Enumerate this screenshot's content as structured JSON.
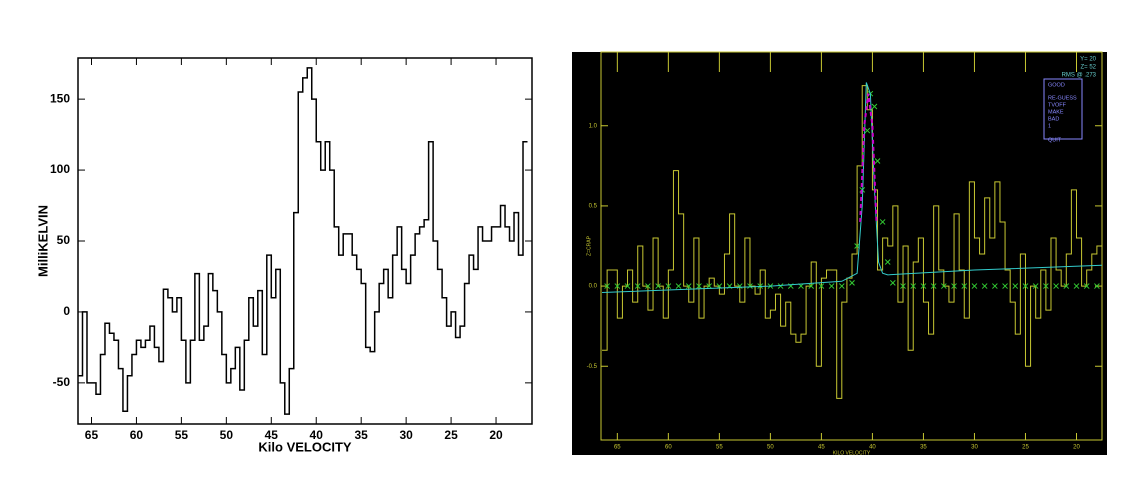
{
  "chart_data": [
    {
      "type": "step",
      "xlabel": "Kilo VELOCITY",
      "ylabel": "MilliKELVIN",
      "color": "#000000",
      "x": [
        66.25,
        65.75,
        65.25,
        64.75,
        64.25,
        63.75,
        63.25,
        62.75,
        62.25,
        61.75,
        61.25,
        60.75,
        60.25,
        59.75,
        59.25,
        58.75,
        58.25,
        57.75,
        57.25,
        56.75,
        56.25,
        55.75,
        55.25,
        54.75,
        54.25,
        53.75,
        53.25,
        52.75,
        52.25,
        51.75,
        51.25,
        50.75,
        50.25,
        49.75,
        49.25,
        48.75,
        48.25,
        47.75,
        47.25,
        46.75,
        46.25,
        45.75,
        45.25,
        44.75,
        44.25,
        43.75,
        43.25,
        42.75,
        42.25,
        41.75,
        41.25,
        40.75,
        40.25,
        39.75,
        39.25,
        38.75,
        38.25,
        37.75,
        37.25,
        36.75,
        36.25,
        35.75,
        35.25,
        34.75,
        34.25,
        33.75,
        33.25,
        32.75,
        32.25,
        31.75,
        31.25,
        30.75,
        30.25,
        29.75,
        29.25,
        28.75,
        28.25,
        27.75,
        27.25,
        26.75,
        26.25,
        25.75,
        25.25,
        24.75,
        24.25,
        23.75,
        23.25,
        22.75,
        22.25,
        21.75,
        21.25,
        20.75,
        20.25,
        19.75,
        19.25,
        18.75,
        18.25,
        17.75,
        17.25,
        16.75
      ],
      "values": [
        -45,
        0,
        -50,
        -50,
        -58,
        -30,
        -8,
        -15,
        -20,
        -40,
        -70,
        -45,
        -30,
        -20,
        -25,
        -20,
        -10,
        -25,
        -35,
        16,
        10,
        0,
        10,
        -20,
        -50,
        -20,
        27,
        -20,
        -10,
        27,
        15,
        0,
        -30,
        -50,
        -40,
        -25,
        -55,
        -20,
        10,
        -10,
        15,
        -30,
        40,
        10,
        30,
        -50,
        -72,
        -40,
        70,
        155,
        165,
        172,
        150,
        120,
        100,
        120,
        100,
        60,
        40,
        55,
        55,
        40,
        30,
        20,
        -25,
        -28,
        0,
        20,
        30,
        10,
        40,
        60,
        30,
        20,
        40,
        55,
        60,
        65,
        120,
        50,
        30,
        10,
        -10,
        0,
        -18,
        -10,
        20,
        40,
        30,
        60,
        50,
        50,
        60,
        60,
        75,
        60,
        50,
        70,
        40,
        120
      ],
      "xlim": [
        66.5,
        16
      ],
      "ylim": [
        -79,
        179
      ],
      "xticks": [
        65,
        60,
        55,
        50,
        45,
        40,
        35,
        30,
        25,
        20
      ],
      "yticks": [
        -50,
        0,
        50,
        100,
        150
      ]
    },
    {
      "type": "step",
      "xlabel": "KILO VELOCITY",
      "ylabel": "Z=CRAP",
      "background": "#000000",
      "axis_color": "#c8c832",
      "xlim": [
        66.6,
        17.5
      ],
      "ylim": [
        -0.96,
        1.46
      ],
      "xticks": [
        65,
        60,
        55,
        50,
        45,
        40,
        35,
        30,
        25,
        20
      ],
      "yticks": [
        -0.5,
        {
          "value": 0,
          "label": "0.0"
        },
        0.5,
        {
          "value": 1,
          "label": "1.0"
        }
      ],
      "series": [
        {
          "style": "step",
          "color": "#c8c832",
          "x": [
            66.25,
            65.75,
            65.25,
            64.75,
            64.25,
            63.75,
            63.25,
            62.75,
            62.25,
            61.75,
            61.25,
            60.75,
            60.25,
            59.75,
            59.25,
            58.75,
            58.25,
            57.75,
            57.25,
            56.75,
            56.25,
            55.75,
            55.25,
            54.75,
            54.25,
            53.75,
            53.25,
            52.75,
            52.25,
            51.75,
            51.25,
            50.75,
            50.25,
            49.75,
            49.25,
            48.75,
            48.25,
            47.75,
            47.25,
            46.75,
            46.25,
            45.75,
            45.25,
            44.75,
            44.25,
            43.75,
            43.25,
            42.75,
            42.25,
            41.75,
            41.25,
            40.75,
            40.25,
            39.75,
            39.25,
            38.75,
            38.25,
            37.75,
            37.25,
            36.75,
            36.25,
            35.75,
            35.25,
            34.75,
            34.25,
            33.75,
            33.25,
            32.75,
            32.25,
            31.75,
            31.25,
            30.75,
            30.25,
            29.75,
            29.25,
            28.75,
            28.25,
            27.75,
            27.25,
            26.75,
            26.25,
            25.75,
            25.25,
            24.75,
            24.25,
            23.75,
            23.25,
            22.75,
            22.25,
            21.75,
            21.25,
            20.75,
            20.25,
            19.75,
            19.25,
            18.75,
            18.25,
            17.75
          ],
          "values": [
            -0.4,
            0.1,
            0.1,
            -0.2,
            0,
            0.1,
            -0.1,
            0.25,
            0,
            -0.15,
            0.3,
            0,
            -0.2,
            0.1,
            0.72,
            0.45,
            0,
            -0.1,
            0.3,
            -0.2,
            0,
            0.05,
            0,
            -0.05,
            0.2,
            0.45,
            0,
            -0.1,
            0.3,
            0,
            -0.05,
            0.1,
            -0.2,
            -0.15,
            -0.05,
            -0.25,
            -0.1,
            -0.3,
            -0.35,
            -0.3,
            0,
            0.15,
            -0.5,
            0.05,
            0.1,
            0.1,
            -0.7,
            -0.1,
            0.05,
            0.2,
            0.75,
            1.25,
            1.1,
            0.6,
            0.1,
            0.3,
            0.25,
            0.5,
            -0.1,
            0.25,
            -0.4,
            0.15,
            0.3,
            -0.1,
            -0.3,
            0.5,
            0.1,
            0,
            -0.1,
            0.45,
            0.1,
            -0.2,
            0.65,
            0.3,
            0.2,
            0.55,
            0.3,
            0.65,
            0.4,
            0.1,
            -0.1,
            -0.3,
            0.2,
            -0.5,
            0,
            -0.2,
            0.1,
            -0.15,
            0.3,
            0.1,
            0,
            0.2,
            0.6,
            0.3,
            0,
            0.1,
            0.2,
            0.25
          ]
        },
        {
          "style": "markers",
          "color": "#33cc33",
          "x": [
            66,
            65,
            64,
            63,
            62,
            61,
            60,
            59,
            58,
            57,
            56,
            55,
            54,
            53,
            52,
            51,
            50,
            49,
            48,
            47,
            46,
            45,
            44,
            43,
            42,
            41.5,
            41,
            40.5,
            40.2,
            39.8,
            39.5,
            39,
            38.5,
            38,
            37,
            36,
            35,
            34,
            33,
            32,
            31,
            30,
            29,
            28,
            27,
            26,
            25,
            24,
            23,
            22,
            21,
            20,
            19,
            18
          ],
          "values": [
            0,
            0,
            0,
            0,
            0,
            0,
            0,
            0,
            0,
            0,
            0,
            0,
            0,
            0,
            0,
            0,
            0,
            0,
            0,
            0,
            0,
            0,
            0,
            0,
            0.02,
            0.25,
            0.6,
            0.97,
            1.2,
            1.12,
            0.78,
            0.4,
            0.15,
            0.02,
            0,
            0,
            0,
            0,
            0,
            0,
            0,
            0,
            0,
            0,
            0,
            0,
            0,
            0,
            0,
            0,
            0,
            0,
            0,
            0
          ]
        },
        {
          "style": "line",
          "color": "#33cccc",
          "x": [
            66.5,
            50,
            43,
            41.5,
            41,
            40.6,
            40.2,
            39.8,
            39.4,
            39,
            38.5,
            30,
            17.5
          ],
          "values": [
            -0.04,
            0,
            0.03,
            0.08,
            0.5,
            1.27,
            1.2,
            0.6,
            0.15,
            0.08,
            0.07,
            0.1,
            0.13
          ]
        },
        {
          "style": "dashed",
          "color": "#cc00cc",
          "x": [
            41.2,
            40.8,
            40.4,
            40,
            39.6
          ],
          "values": [
            0.4,
            1,
            1.2,
            1,
            0.4
          ]
        }
      ],
      "annotations": [
        "Y=  20",
        "Z=  52",
        "RMS @ .273"
      ],
      "menu": [
        "GOOD",
        "RE-GUESS",
        "TVOFF",
        "MAKE",
        "BAD",
        "1",
        "QUIT"
      ]
    }
  ]
}
